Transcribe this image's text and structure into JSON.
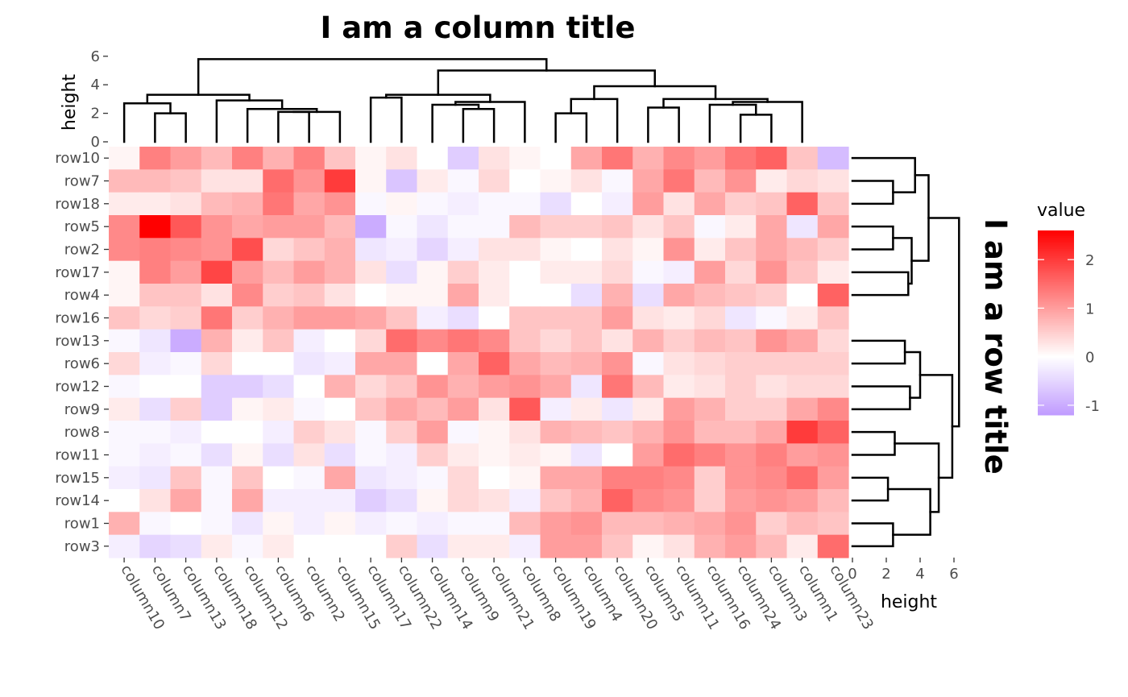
{
  "chart_data": {
    "type": "heatmap",
    "title": "I am a column title",
    "row_title": "I am a row title",
    "rows": [
      "row10",
      "row7",
      "row18",
      "row5",
      "row2",
      "row17",
      "row4",
      "row16",
      "row13",
      "row6",
      "row12",
      "row9",
      "row8",
      "row11",
      "row15",
      "row14",
      "row1",
      "row3"
    ],
    "columns": [
      "column10",
      "column7",
      "column13",
      "column18",
      "column12",
      "column6",
      "column2",
      "column15",
      "column17",
      "column22",
      "column14",
      "column9",
      "column21",
      "column8",
      "column19",
      "column4",
      "column20",
      "column5",
      "column11",
      "column16",
      "column24",
      "column3",
      "column1",
      "column23"
    ],
    "values": [
      [
        0.1,
        1.3,
        1.0,
        0.7,
        1.3,
        0.8,
        1.3,
        0.6,
        0.1,
        0.3,
        0.0,
        -0.6,
        0.3,
        0.1,
        0.0,
        0.9,
        1.4,
        0.8,
        1.2,
        1.0,
        1.4,
        1.6,
        0.6,
        -0.8
      ],
      [
        0.7,
        0.7,
        0.6,
        0.3,
        0.3,
        1.5,
        1.1,
        2.0,
        0.1,
        -0.7,
        0.2,
        -0.1,
        0.4,
        0.0,
        0.1,
        0.3,
        -0.1,
        0.9,
        1.4,
        0.7,
        1.1,
        0.2,
        0.4,
        0.3
      ],
      [
        0.2,
        0.2,
        0.3,
        0.7,
        0.8,
        1.4,
        0.9,
        1.1,
        -0.1,
        0.1,
        -0.1,
        -0.2,
        -0.1,
        -0.1,
        -0.4,
        0.0,
        -0.2,
        1.0,
        0.3,
        0.9,
        0.5,
        0.6,
        1.6,
        0.6
      ],
      [
        1.2,
        2.6,
        1.7,
        1.1,
        0.9,
        1.0,
        1.0,
        0.7,
        -1.0,
        -0.1,
        -0.3,
        -0.1,
        -0.1,
        0.7,
        0.5,
        0.5,
        0.6,
        0.3,
        0.6,
        -0.1,
        0.2,
        0.9,
        -0.3,
        0.9
      ],
      [
        1.2,
        1.3,
        1.2,
        1.1,
        1.8,
        0.4,
        0.6,
        0.8,
        -0.3,
        -0.2,
        -0.5,
        -0.2,
        0.3,
        0.3,
        0.1,
        0.0,
        0.3,
        0.1,
        1.1,
        0.2,
        0.6,
        0.9,
        0.7,
        0.5
      ],
      [
        0.1,
        1.3,
        1.0,
        1.9,
        1.0,
        0.7,
        1.0,
        0.8,
        0.3,
        -0.4,
        0.1,
        0.5,
        0.2,
        0.0,
        0.2,
        0.2,
        0.4,
        -0.1,
        -0.2,
        1.0,
        0.4,
        1.1,
        0.6,
        0.2
      ],
      [
        0.1,
        0.6,
        0.6,
        0.3,
        1.2,
        0.5,
        0.6,
        0.3,
        0.0,
        0.1,
        0.1,
        0.9,
        0.2,
        0.0,
        0.0,
        -0.4,
        0.8,
        -0.4,
        0.9,
        0.7,
        0.6,
        0.5,
        0.0,
        1.6
      ],
      [
        0.6,
        0.4,
        0.5,
        1.4,
        0.5,
        0.8,
        1.0,
        1.0,
        0.9,
        0.6,
        -0.2,
        -0.4,
        0.0,
        0.6,
        0.6,
        0.6,
        1.0,
        0.3,
        0.2,
        0.4,
        -0.3,
        -0.1,
        0.2,
        0.6
      ],
      [
        -0.1,
        -0.3,
        -1.0,
        0.8,
        0.2,
        0.6,
        -0.2,
        0.0,
        0.4,
        1.5,
        1.2,
        1.4,
        1.2,
        0.6,
        0.4,
        0.6,
        0.3,
        0.8,
        0.5,
        0.7,
        0.6,
        1.1,
        0.9,
        0.4
      ],
      [
        0.4,
        -0.2,
        -0.1,
        0.4,
        0.0,
        0.0,
        -0.3,
        -0.2,
        0.9,
        0.9,
        0.0,
        0.9,
        1.6,
        0.9,
        0.7,
        0.8,
        1.1,
        -0.1,
        0.3,
        0.4,
        0.5,
        0.5,
        0.5,
        0.5
      ],
      [
        -0.1,
        0.0,
        0.0,
        -0.6,
        -0.6,
        -0.4,
        0.0,
        0.8,
        0.4,
        0.6,
        1.1,
        0.8,
        1.0,
        1.1,
        0.9,
        -0.3,
        1.4,
        0.7,
        0.2,
        0.3,
        0.5,
        0.3,
        0.4,
        0.4
      ],
      [
        0.2,
        -0.4,
        0.5,
        -0.6,
        0.1,
        0.2,
        -0.1,
        0.0,
        0.6,
        0.9,
        0.7,
        1.0,
        0.3,
        1.7,
        -0.2,
        0.2,
        -0.3,
        0.2,
        1.0,
        0.8,
        0.5,
        0.5,
        0.9,
        1.2
      ],
      [
        -0.1,
        -0.1,
        -0.2,
        0.0,
        0.0,
        -0.2,
        0.5,
        0.3,
        -0.1,
        0.5,
        1.0,
        -0.1,
        0.1,
        0.3,
        0.8,
        0.7,
        0.6,
        0.8,
        1.1,
        0.7,
        0.7,
        0.9,
        2.0,
        1.6
      ],
      [
        -0.1,
        -0.2,
        -0.1,
        -0.4,
        0.1,
        -0.4,
        0.3,
        -0.4,
        -0.1,
        -0.2,
        0.5,
        0.2,
        0.1,
        0.2,
        0.1,
        -0.3,
        0.0,
        1.0,
        1.5,
        1.3,
        1.1,
        1.3,
        1.0,
        1.1
      ],
      [
        -0.2,
        -0.3,
        0.6,
        -0.1,
        0.6,
        0.0,
        -0.1,
        0.9,
        -0.3,
        -0.2,
        -0.1,
        0.4,
        0.0,
        0.1,
        0.9,
        0.9,
        1.3,
        1.3,
        1.2,
        0.5,
        1.1,
        1.2,
        1.5,
        1.0
      ],
      [
        0.0,
        0.3,
        0.9,
        -0.1,
        0.9,
        -0.2,
        -0.2,
        -0.2,
        -0.6,
        -0.4,
        0.1,
        0.4,
        0.3,
        -0.2,
        0.6,
        0.8,
        1.6,
        1.2,
        1.1,
        0.5,
        1.0,
        1.1,
        1.0,
        0.7
      ],
      [
        0.8,
        -0.1,
        0.0,
        -0.1,
        -0.3,
        0.1,
        -0.2,
        0.1,
        -0.2,
        -0.1,
        -0.2,
        -0.1,
        -0.1,
        0.7,
        1.0,
        1.1,
        0.7,
        0.7,
        0.8,
        0.9,
        1.1,
        0.5,
        0.7,
        0.6
      ],
      [
        -0.2,
        -0.5,
        -0.4,
        0.2,
        -0.1,
        0.2,
        0.0,
        0.0,
        0.0,
        0.5,
        -0.4,
        0.2,
        0.2,
        -0.2,
        1.0,
        1.0,
        0.6,
        0.1,
        0.3,
        0.8,
        1.0,
        0.7,
        0.2,
        1.5
      ]
    ],
    "legend": {
      "title": "value",
      "ticks": [
        2,
        1,
        0,
        -1
      ],
      "tick_labels": [
        "2",
        "1",
        "0",
        "-1"
      ],
      "range": [
        -1.2,
        2.6
      ]
    },
    "colors": {
      "high": "#ff0000",
      "mid": "#ffffff",
      "low": "#c09bff"
    },
    "column_dendrogram": {
      "ylabel": "height",
      "ticks": [
        0,
        2,
        4,
        6
      ],
      "tick_labels": [
        "0",
        "2",
        "4",
        "6"
      ],
      "merges": [
        [
          1,
          2,
          2.0
        ],
        [
          0,
          "a",
          2.7
        ],
        [
          5,
          6,
          2.1
        ],
        [
          7,
          "c",
          2.1
        ],
        [
          4,
          "d",
          2.3
        ],
        [
          3,
          "e",
          2.9
        ],
        [
          "b",
          "f",
          3.3
        ],
        [
          11,
          12,
          2.3
        ],
        [
          10,
          "h",
          2.6
        ],
        [
          "i",
          13,
          2.8
        ],
        [
          8,
          9,
          3.1
        ],
        [
          "k",
          "j",
          3.3
        ],
        [
          14,
          15,
          2.0
        ],
        [
          "m",
          16,
          3.0
        ],
        [
          20,
          21,
          1.9
        ],
        [
          "o",
          19,
          2.6
        ],
        [
          "p",
          22,
          2.8
        ],
        [
          17,
          18,
          2.4
        ],
        [
          "r",
          "q",
          3.0
        ],
        [
          "n",
          "s",
          3.9
        ],
        [
          "l",
          "t",
          5.0
        ],
        [
          "g",
          "u",
          5.8
        ]
      ]
    },
    "row_dendrogram": {
      "xlabel": "height",
      "ticks": [
        0,
        2,
        4,
        6
      ],
      "tick_labels": [
        "0",
        "2",
        "4",
        "6"
      ],
      "merges": [
        [
          1,
          2,
          2.4
        ],
        [
          0,
          "a",
          3.7
        ],
        [
          3,
          4,
          2.4
        ],
        [
          5,
          6,
          3.3
        ],
        [
          "c",
          "d",
          3.5
        ],
        [
          "b",
          "e",
          4.5
        ],
        [
          8,
          9,
          3.1
        ],
        [
          10,
          11,
          3.4
        ],
        [
          "g",
          "h",
          4.0
        ],
        [
          12,
          13,
          2.5
        ],
        [
          14,
          15,
          2.1
        ],
        [
          16,
          17,
          2.4
        ],
        [
          "k",
          "l",
          4.6
        ],
        [
          "j",
          "m",
          5.1
        ],
        [
          "i",
          "n",
          5.9
        ],
        [
          "f",
          "o",
          6.3
        ]
      ]
    }
  }
}
